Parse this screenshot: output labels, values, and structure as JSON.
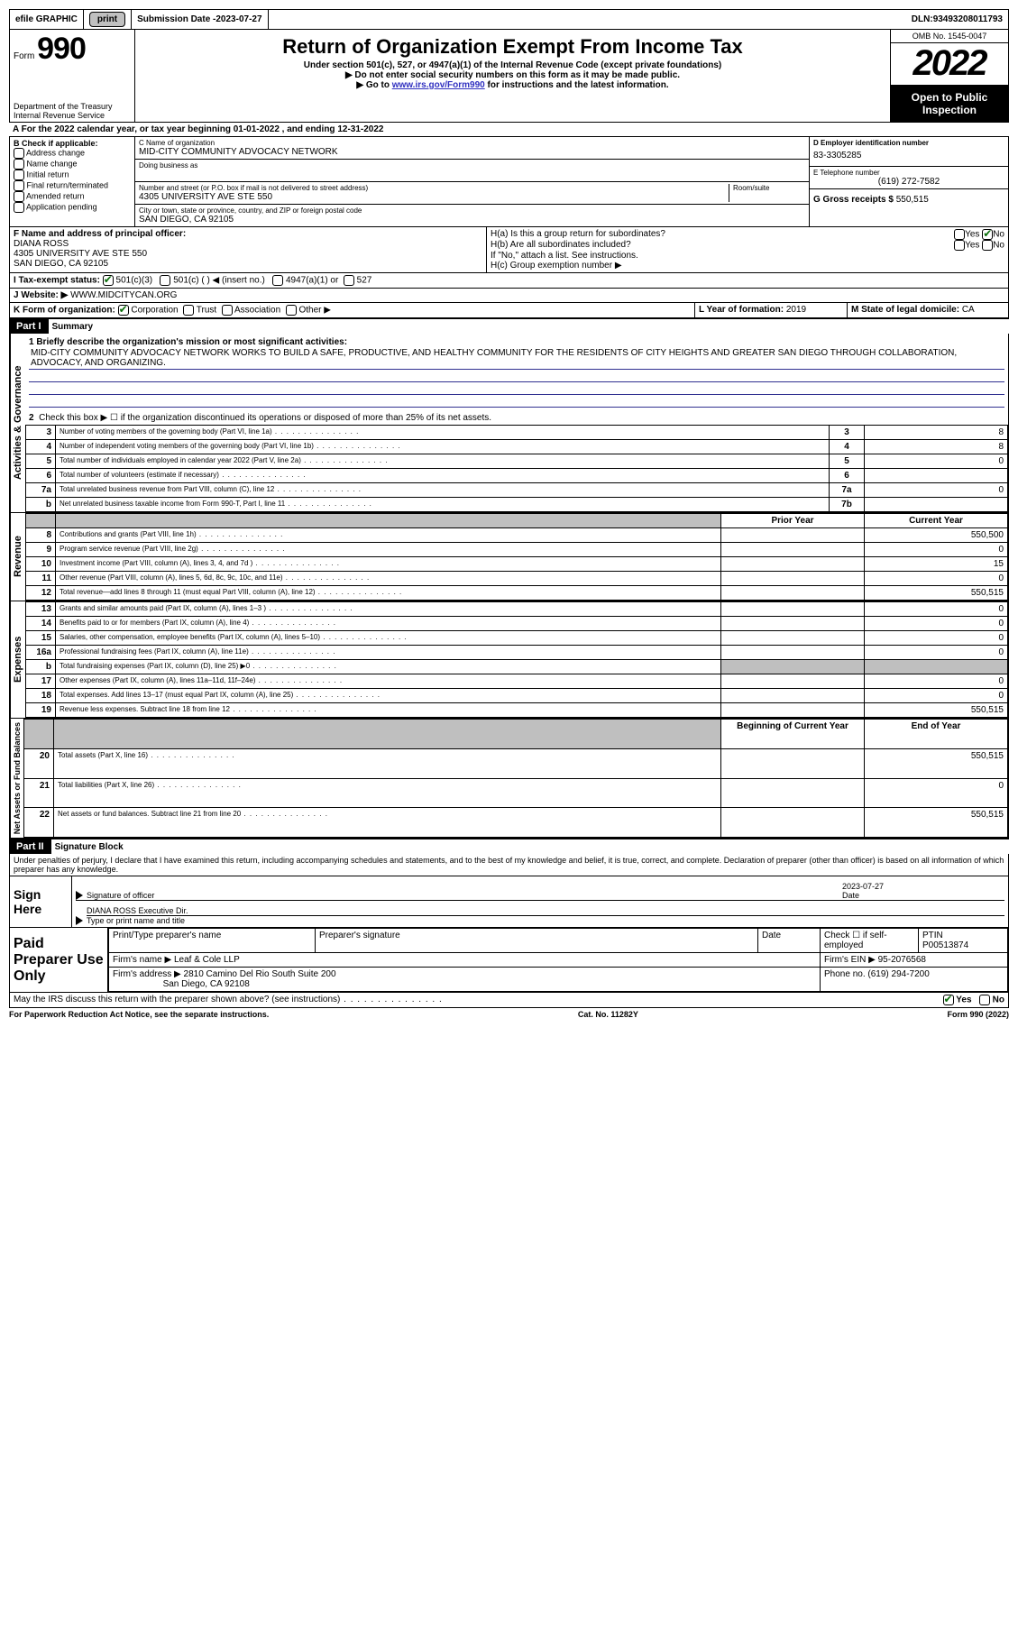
{
  "topbar": {
    "efile": "efile GRAPHIC",
    "print": "print",
    "submission_label": "Submission Date - ",
    "submission_date": "2023-07-27",
    "dln_label": "DLN: ",
    "dln": "93493208011793"
  },
  "header": {
    "form_label": "Form",
    "form_number": "990",
    "dept": "Department of the Treasury\nInternal Revenue Service",
    "title": "Return of Organization Exempt From Income Tax",
    "subtitle": "Under section 501(c), 527, or 4947(a)(1) of the Internal Revenue Code (except private foundations)",
    "note1": "▶ Do not enter social security numbers on this form as it may be made public.",
    "note2_pre": "▶ Go to ",
    "note2_link": "www.irs.gov/Form990",
    "note2_post": " for instructions and the latest information.",
    "omb": "OMB No. 1545-0047",
    "year": "2022",
    "open": "Open to Public Inspection"
  },
  "lineA": "A For the 2022 calendar year, or tax year beginning 01-01-2022    , and ending 12-31-2022",
  "boxB": {
    "label": "B Check if applicable:",
    "opts": [
      "Address change",
      "Name change",
      "Initial return",
      "Final return/terminated",
      "Amended return",
      "Application pending"
    ]
  },
  "boxC": {
    "label_name": "C Name of organization",
    "name": "MID-CITY COMMUNITY ADVOCACY NETWORK",
    "dba_label": "Doing business as",
    "addr_label": "Number and street (or P.O. box if mail is not delivered to street address)",
    "room_label": "Room/suite",
    "addr": "4305 UNIVERSITY AVE STE 550",
    "city_label": "City or town, state or province, country, and ZIP or foreign postal code",
    "city": "SAN DIEGO, CA  92105"
  },
  "boxD": {
    "label": "D Employer identification number",
    "ein": "83-3305285"
  },
  "boxE": {
    "label": "E Telephone number",
    "phone": "(619) 272-7582"
  },
  "boxG": {
    "label": "G Gross receipts $",
    "amount": "550,515"
  },
  "boxF": {
    "label": "F Name and address of principal officer:",
    "name": "DIANA ROSS",
    "addr1": "4305 UNIVERSITY AVE STE 550",
    "addr2": "SAN DIEGO, CA  92105"
  },
  "boxH": {
    "a": "H(a)  Is this a group return for subordinates?",
    "b": "H(b)  Are all subordinates included?",
    "note": "If \"No,\" attach a list. See instructions.",
    "c": "H(c)  Group exemption number ▶"
  },
  "boxI": {
    "label": "I   Tax-exempt status:",
    "opt1": "501(c)(3)",
    "opt2": "501(c) (  ) ◀ (insert no.)",
    "opt3": "4947(a)(1) or",
    "opt4": "527"
  },
  "boxJ": {
    "label": "J   Website: ▶",
    "url": "WWW.MIDCITYCAN.ORG"
  },
  "boxK": {
    "label": "K Form of organization:",
    "opts": [
      "Corporation",
      "Trust",
      "Association",
      "Other ▶"
    ]
  },
  "boxL": {
    "label": "L Year of formation: ",
    "val": "2019"
  },
  "boxM": {
    "label": "M State of legal domicile: ",
    "val": "CA"
  },
  "part1": {
    "header": "Part I",
    "title": "Summary",
    "l1_label": "1  Briefly describe the organization's mission or most significant activities:",
    "mission": "MID-CITY COMMUNITY ADVOCACY NETWORK WORKS TO BUILD A SAFE, PRODUCTIVE, AND HEALTHY COMMUNITY FOR THE RESIDENTS OF CITY HEIGHTS AND GREATER SAN DIEGO THROUGH COLLABORATION, ADVOCACY, AND ORGANIZING.",
    "l2": "Check this box ▶ ☐  if the organization discontinued its operations or disposed of more than 25% of its net assets.",
    "vlabel_ag": "Activities & Governance",
    "vlabel_rev": "Revenue",
    "vlabel_exp": "Expenses",
    "vlabel_net": "Net Assets or Fund Balances",
    "lines_gov": [
      {
        "n": "3",
        "t": "Number of voting members of the governing body (Part VI, line 1a)",
        "box": "3",
        "v": "8"
      },
      {
        "n": "4",
        "t": "Number of independent voting members of the governing body (Part VI, line 1b)",
        "box": "4",
        "v": "8"
      },
      {
        "n": "5",
        "t": "Total number of individuals employed in calendar year 2022 (Part V, line 2a)",
        "box": "5",
        "v": "0"
      },
      {
        "n": "6",
        "t": "Total number of volunteers (estimate if necessary)",
        "box": "6",
        "v": ""
      },
      {
        "n": "7a",
        "t": "Total unrelated business revenue from Part VIII, column (C), line 12",
        "box": "7a",
        "v": "0"
      },
      {
        "n": " b",
        "t": "Net unrelated business taxable income from Form 990-T, Part I, line 11",
        "box": "7b",
        "v": ""
      }
    ],
    "col_prior": "Prior Year",
    "col_curr": "Current Year",
    "lines_rev": [
      {
        "n": "8",
        "t": "Contributions and grants (Part VIII, line 1h)",
        "p": "",
        "c": "550,500"
      },
      {
        "n": "9",
        "t": "Program service revenue (Part VIII, line 2g)",
        "p": "",
        "c": "0"
      },
      {
        "n": "10",
        "t": "Investment income (Part VIII, column (A), lines 3, 4, and 7d )",
        "p": "",
        "c": "15"
      },
      {
        "n": "11",
        "t": "Other revenue (Part VIII, column (A), lines 5, 6d, 8c, 9c, 10c, and 11e)",
        "p": "",
        "c": "0"
      },
      {
        "n": "12",
        "t": "Total revenue—add lines 8 through 11 (must equal Part VIII, column (A), line 12)",
        "p": "",
        "c": "550,515"
      }
    ],
    "lines_exp": [
      {
        "n": "13",
        "t": "Grants and similar amounts paid (Part IX, column (A), lines 1–3 )",
        "p": "",
        "c": "0"
      },
      {
        "n": "14",
        "t": "Benefits paid to or for members (Part IX, column (A), line 4)",
        "p": "",
        "c": "0"
      },
      {
        "n": "15",
        "t": "Salaries, other compensation, employee benefits (Part IX, column (A), lines 5–10)",
        "p": "",
        "c": "0"
      },
      {
        "n": "16a",
        "t": "Professional fundraising fees (Part IX, column (A), line 11e)",
        "p": "",
        "c": "0"
      },
      {
        "n": "b",
        "t": "Total fundraising expenses (Part IX, column (D), line 25) ▶0",
        "p": "shade",
        "c": "shade"
      },
      {
        "n": "17",
        "t": "Other expenses (Part IX, column (A), lines 11a–11d, 11f–24e)",
        "p": "",
        "c": "0"
      },
      {
        "n": "18",
        "t": "Total expenses. Add lines 13–17 (must equal Part IX, column (A), line 25)",
        "p": "",
        "c": "0"
      },
      {
        "n": "19",
        "t": "Revenue less expenses. Subtract line 18 from line 12",
        "p": "",
        "c": "550,515"
      }
    ],
    "col_begin": "Beginning of Current Year",
    "col_end": "End of Year",
    "lines_net": [
      {
        "n": "20",
        "t": "Total assets (Part X, line 16)",
        "p": "",
        "c": "550,515"
      },
      {
        "n": "21",
        "t": "Total liabilities (Part X, line 26)",
        "p": "",
        "c": "0"
      },
      {
        "n": "22",
        "t": "Net assets or fund balances. Subtract line 21 from line 20",
        "p": "",
        "c": "550,515"
      }
    ]
  },
  "part2": {
    "header": "Part II",
    "title": "Signature Block",
    "penalty": "Under penalties of perjury, I declare that I have examined this return, including accompanying schedules and statements, and to the best of my knowledge and belief, it is true, correct, and complete. Declaration of preparer (other than officer) is based on all information of which preparer has any knowledge.",
    "sign_here": "Sign Here",
    "sig_officer": "Signature of officer",
    "sig_date": "2023-07-27",
    "sig_name": "DIANA ROSS Executive Dir.",
    "sig_name_label": "Type or print name and title",
    "paid": "Paid Preparer Use Only",
    "prep_name_label": "Print/Type preparer's name",
    "prep_sig_label": "Preparer's signature",
    "date_label": "Date",
    "check_if": "Check ☐ if self-employed",
    "ptin_label": "PTIN",
    "ptin": "P00513874",
    "firm_name_label": "Firm's name    ▶",
    "firm_name": "Leaf & Cole LLP",
    "firm_ein_label": "Firm's EIN ▶",
    "firm_ein": "95-2076568",
    "firm_addr_label": "Firm's address ▶",
    "firm_addr": "2810 Camino Del Rio South Suite 200",
    "firm_city": "San Diego, CA  92108",
    "phone_label": "Phone no.",
    "phone": "(619) 294-7200",
    "may_irs": "May the IRS discuss this return with the preparer shown above? (see instructions)"
  },
  "footer": {
    "notice": "For Paperwork Reduction Act Notice, see the separate instructions.",
    "cat": "Cat. No. 11282Y",
    "form": "Form 990 (2022)"
  },
  "yes": "Yes",
  "no": "No"
}
